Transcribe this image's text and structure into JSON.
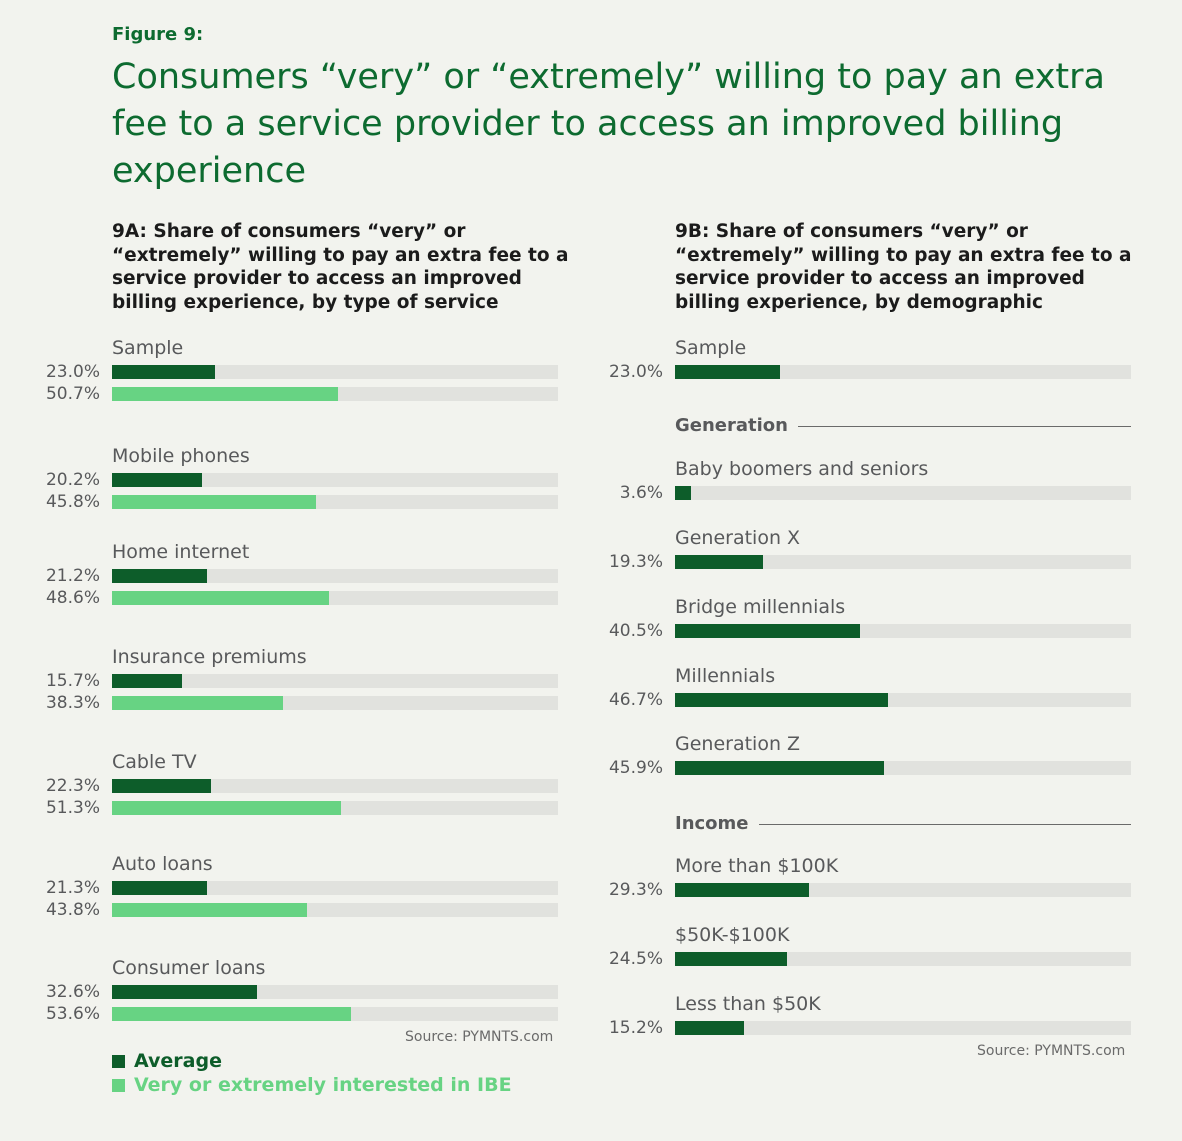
{
  "figure_label": "Figure 9:",
  "title": "Consumers “very” or “extremely” willing to pay an extra fee to a service provider to access an improved billing experience",
  "colors": {
    "average": "#0d5d2a",
    "ibe": "#67d383",
    "track": "#e1e2de",
    "title": "#0d6b30"
  },
  "legend": {
    "average": "Average",
    "ibe": "Very or extremely interested in IBE"
  },
  "chart_data": [
    {
      "type": "bar",
      "title": "9A: Share of consumers “very” or “extremely” willing to pay an extra fee to a service provider to access an improved billing experience, by type of service",
      "orientation": "horizontal",
      "xlim": [
        0,
        100
      ],
      "categories": [
        "Sample",
        "Mobile phones",
        "Home internet",
        "Insurance premiums",
        "Cable TV",
        "Auto loans",
        "Consumer loans"
      ],
      "series": [
        {
          "name": "Average",
          "values": [
            23.0,
            20.2,
            21.2,
            15.7,
            22.3,
            21.3,
            32.6
          ],
          "labels": [
            "23.0%",
            "20.2%",
            "21.2%",
            "15.7%",
            "22.3%",
            "21.3%",
            "32.6%"
          ]
        },
        {
          "name": "Very or extremely interested in IBE",
          "values": [
            50.7,
            45.8,
            48.6,
            38.3,
            51.3,
            43.8,
            53.6
          ],
          "labels": [
            "50.7%",
            "45.8%",
            "48.6%",
            "38.3%",
            "51.3%",
            "43.8%",
            "53.6%"
          ]
        }
      ],
      "source": "Source: PYMNTS.com"
    },
    {
      "type": "bar",
      "title": "9B: Share of consumers “very” or “extremely” willing to pay an extra fee to a service provider to access an improved billing experience, by demographic",
      "orientation": "horizontal",
      "xlim": [
        0,
        100
      ],
      "groups": [
        {
          "heading": "",
          "items": [
            {
              "label": "Sample",
              "value": 23.0,
              "value_label": "23.0%"
            }
          ]
        },
        {
          "heading": "Generation",
          "items": [
            {
              "label": "Baby boomers and seniors",
              "value": 3.6,
              "value_label": "3.6%"
            },
            {
              "label": "Generation X",
              "value": 19.3,
              "value_label": "19.3%"
            },
            {
              "label": "Bridge millennials",
              "value": 40.5,
              "value_label": "40.5%"
            },
            {
              "label": "Millennials",
              "value": 46.7,
              "value_label": "46.7%"
            },
            {
              "label": "Generation Z",
              "value": 45.9,
              "value_label": "45.9%"
            }
          ]
        },
        {
          "heading": "Income",
          "items": [
            {
              "label": "More than $100K",
              "value": 29.3,
              "value_label": "29.3%"
            },
            {
              "label": "$50K-$100K",
              "value": 24.5,
              "value_label": "24.5%"
            },
            {
              "label": "Less than $50K",
              "value": 15.2,
              "value_label": "15.2%"
            }
          ]
        }
      ],
      "source": "Source: PYMNTS.com"
    }
  ]
}
